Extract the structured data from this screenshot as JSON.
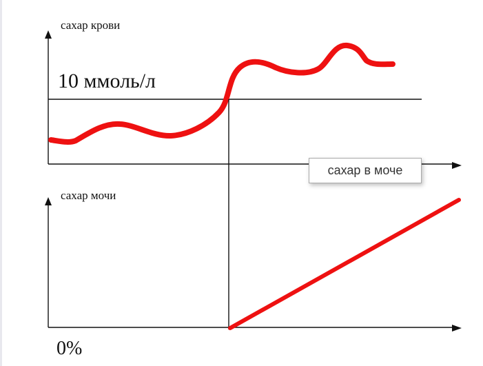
{
  "top_chart": {
    "y_axis_label": "сахар крови",
    "threshold_label": "10 ммоль/л"
  },
  "bottom_chart": {
    "y_axis_label": "сахар мочи",
    "origin_label": "0%"
  },
  "tooltip": {
    "text": "сахар в моче"
  },
  "colors": {
    "curve": "#ee1111",
    "axes": "#111111",
    "left_border": "#e8e8ee"
  }
}
